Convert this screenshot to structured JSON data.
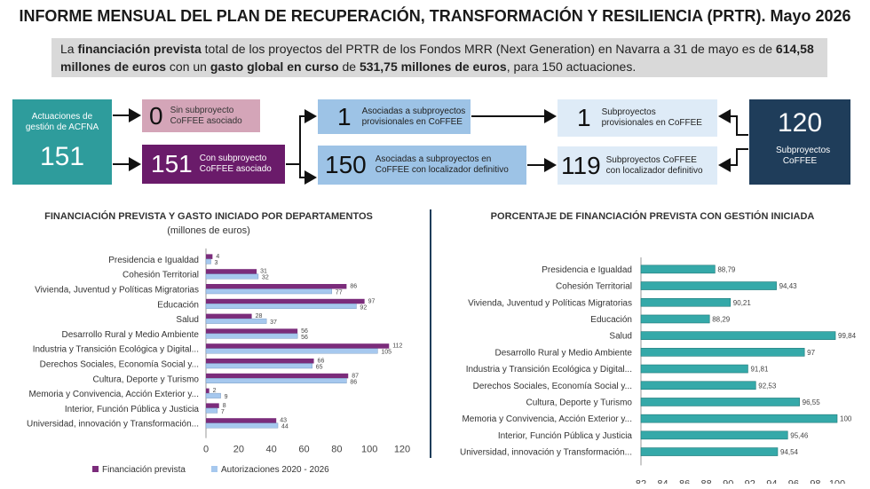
{
  "title": "INFORME MENSUAL DEL PLAN DE RECUPERACIÓN, TRANSFORMACIÓN Y RESILIENCIA (PRTR). Mayo 2026",
  "summary": {
    "t1": "La ",
    "b1": "financiación prevista",
    "t2": " total de los proyectos del PRTR de los Fondos MRR (Next Generation) en Navarra a 31 de mayo es de ",
    "b2": "614,58 millones de euros",
    "t3": " con un ",
    "b3": "gasto global en curso",
    "t4": " de ",
    "b4": "531,75 millones de euros",
    "t5": ", para 150 actuaciones."
  },
  "flow": {
    "acfna": {
      "label": "Actuaciones de gestión de ACFNA",
      "value": "151"
    },
    "sin": {
      "value": "0",
      "label": "Sin subproyecto CoFFEE asociado"
    },
    "con": {
      "value": "151",
      "label": "Con subproyecto CoFFEE asociado"
    },
    "prov": {
      "value": "1",
      "label": "Asociadas a subproyectos provisionales en CoFFEE"
    },
    "def": {
      "value": "150",
      "label": "Asociadas a subproyectos en CoFFEE con localizador definitivo"
    },
    "subprov": {
      "value": "1",
      "label": "Subproyectos provisionales en CoFFEE"
    },
    "subdef": {
      "value": "119",
      "label": "Subproyectos CoFFEE con localizador definitivo"
    },
    "total": {
      "value": "120",
      "label": "Subproyectos CoFFEE"
    }
  },
  "colors": {
    "teal": "#2e9c9c",
    "pink": "#d4a5b8",
    "purple": "#6a1b6a",
    "lightblue": "#9dc3e6",
    "palebox": "#deebf7",
    "navy": "#1f3d5a",
    "barPurple": "#7b2c7b",
    "barBlue": "#a6c8ee",
    "barTeal": "#35a9a9"
  },
  "chart_data": [
    {
      "type": "bar",
      "title": "FINANCIACIÓN PREVISTA Y GASTO INICIADO POR DEPARTAMENTOS",
      "subtitle": "(millones de euros)",
      "categories": [
        "Presidencia e Igualdad",
        "Cohesión Territorial",
        "Vivienda, Juventud y Políticas Migratorias",
        "Educación",
        "Salud",
        "Desarrollo Rural y Medio Ambiente",
        "Industria y Transición Ecológica y Digital...",
        "Derechos Sociales, Economía Social y...",
        "Cultura, Deporte y Turismo",
        "Memoria y Convivencia, Acción Exterior y...",
        "Interior, Función Pública y Justicia",
        "Universidad, innovación y Transformación..."
      ],
      "series": [
        {
          "name": "Financiación prevista",
          "values": [
            4,
            31,
            86,
            97,
            28,
            56,
            112,
            66,
            87,
            2,
            8,
            43
          ]
        },
        {
          "name": "Autorizaciones 2020 - 2026",
          "values": [
            3,
            32,
            77,
            92,
            37,
            56,
            105,
            65,
            86,
            9,
            7,
            44
          ]
        }
      ],
      "xlim": [
        0,
        120
      ],
      "xticks": [
        0,
        20,
        40,
        60,
        80,
        100,
        120
      ],
      "legend": "bottom"
    },
    {
      "type": "bar",
      "title": "PORCENTAJE DE FINANCIACIÓN PREVISTA CON GESTIÓN INICIADA",
      "categories": [
        "Presidencia e Igualdad",
        "Cohesión Territorial",
        "Vivienda, Juventud y Políticas Migratorias",
        "Educación",
        "Salud",
        "Desarrollo Rural y Medio Ambiente",
        "Industria y Transición Ecológica y Digital...",
        "Derechos Sociales, Economía Social y...",
        "Cultura, Deporte y Turismo",
        "Memoria y Convivencia, Acción Exterior y...",
        "Interior, Función Pública y Justicia",
        "Universidad, innovación y Transformación..."
      ],
      "values": [
        88.79,
        94.43,
        90.21,
        88.29,
        99.84,
        97,
        91.81,
        92.53,
        96.55,
        100,
        95.46,
        94.54
      ],
      "labels": [
        "88,79",
        "94,43",
        "90,21",
        "88,29",
        "99,84",
        "97",
        "91,81",
        "92,53",
        "96,55",
        "100",
        "95,46",
        "94,54"
      ],
      "xlim": [
        82,
        100
      ],
      "xticks": [
        82,
        84,
        86,
        88,
        90,
        92,
        94,
        96,
        98,
        100
      ]
    }
  ]
}
